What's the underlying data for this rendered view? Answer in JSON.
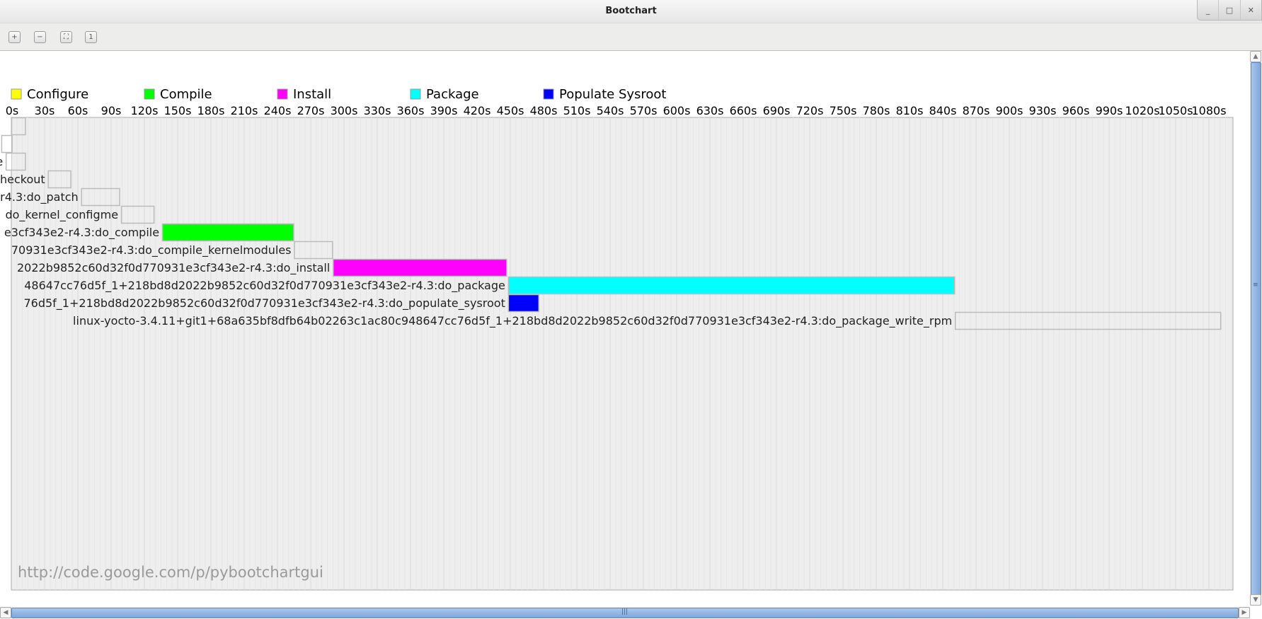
{
  "window": {
    "title": "Bootchart",
    "controls": {
      "minimize": "_",
      "maximize": "□",
      "close": "✕"
    }
  },
  "toolbar": {
    "buttons": [
      {
        "name": "zoom-in",
        "icon": "zoom-in-icon",
        "glyph": "+"
      },
      {
        "name": "zoom-out",
        "icon": "zoom-out-icon",
        "glyph": "−"
      },
      {
        "name": "zoom-fit",
        "icon": "zoom-fit-icon",
        "glyph": "⛶"
      },
      {
        "name": "zoom-100",
        "icon": "zoom-100-icon",
        "glyph": "1"
      }
    ]
  },
  "footer_url": "http://code.google.com/p/pybootchartgui",
  "chart_data": {
    "type": "bar",
    "orientation": "horizontal-timeline",
    "legend": [
      {
        "label": "Configure",
        "color": "#ffff00"
      },
      {
        "label": "Compile",
        "color": "#00ff00"
      },
      {
        "label": "Install",
        "color": "#ff00ff"
      },
      {
        "label": "Package",
        "color": "#00ffff"
      },
      {
        "label": "Populate Sysroot",
        "color": "#0000ff"
      }
    ],
    "legend_placement": "top-left",
    "x_unit": "s",
    "xlim": [
      0,
      1102
    ],
    "x_ticks": [
      "0s",
      "30s",
      "60s",
      "90s",
      "120s",
      "150s",
      "180s",
      "210s",
      "240s",
      "270s",
      "300s",
      "330s",
      "360s",
      "390s",
      "420s",
      "450s",
      "480s",
      "510s",
      "540s",
      "570s",
      "600s",
      "630s",
      "660s",
      "690s",
      "720s",
      "750s",
      "780s",
      "810s",
      "840s",
      "870s",
      "900s",
      "930s",
      "960s",
      "990s",
      "1020s",
      "1050s",
      "1080s"
    ],
    "grid": true,
    "tasks": [
      {
        "label": "",
        "start": 0,
        "end": 13,
        "color": null
      },
      {
        "label": "",
        "start": -9,
        "end": 1,
        "color": null
      },
      {
        "label": "e",
        "start": -5,
        "end": 13,
        "color": null
      },
      {
        "label": "heckout",
        "start": 33,
        "end": 54,
        "color": null
      },
      {
        "label": "r4.3:do_patch",
        "start": 63,
        "end": 98,
        "color": null
      },
      {
        "label": "do_kernel_configme",
        "start": 99,
        "end": 129,
        "color": null
      },
      {
        "label": "e3cf343e2-r4.3:do_compile",
        "start": 136,
        "end": 255,
        "color": "#00ff00"
      },
      {
        "label": "70931e3cf343e2-r4.3:do_compile_kernelmodules",
        "start": 255,
        "end": 290,
        "color": null
      },
      {
        "label": "2022b9852c60d32f0d770931e3cf343e2-r4.3:do_install",
        "start": 290,
        "end": 447,
        "color": "#ff00ff"
      },
      {
        "label": "48647cc76d5f_1+218bd8d2022b9852c60d32f0d770931e3cf343e2-r4.3:do_package",
        "start": 448,
        "end": 851,
        "color": "#00ffff"
      },
      {
        "label": "76d5f_1+218bd8d2022b9852c60d32f0d770931e3cf343e2-r4.3:do_populate_sysroot",
        "start": 448,
        "end": 476,
        "color": "#0000ff"
      },
      {
        "label": "linux-yocto-3.4.11+git1+68a635bf8dfb64b02263c1ac80c948647cc76d5f_1+218bd8d2022b9852c60d32f0d770931e3cf343e2-r4.3:do_package_write_rpm",
        "start": 851,
        "end": 1091,
        "color": null
      }
    ]
  }
}
